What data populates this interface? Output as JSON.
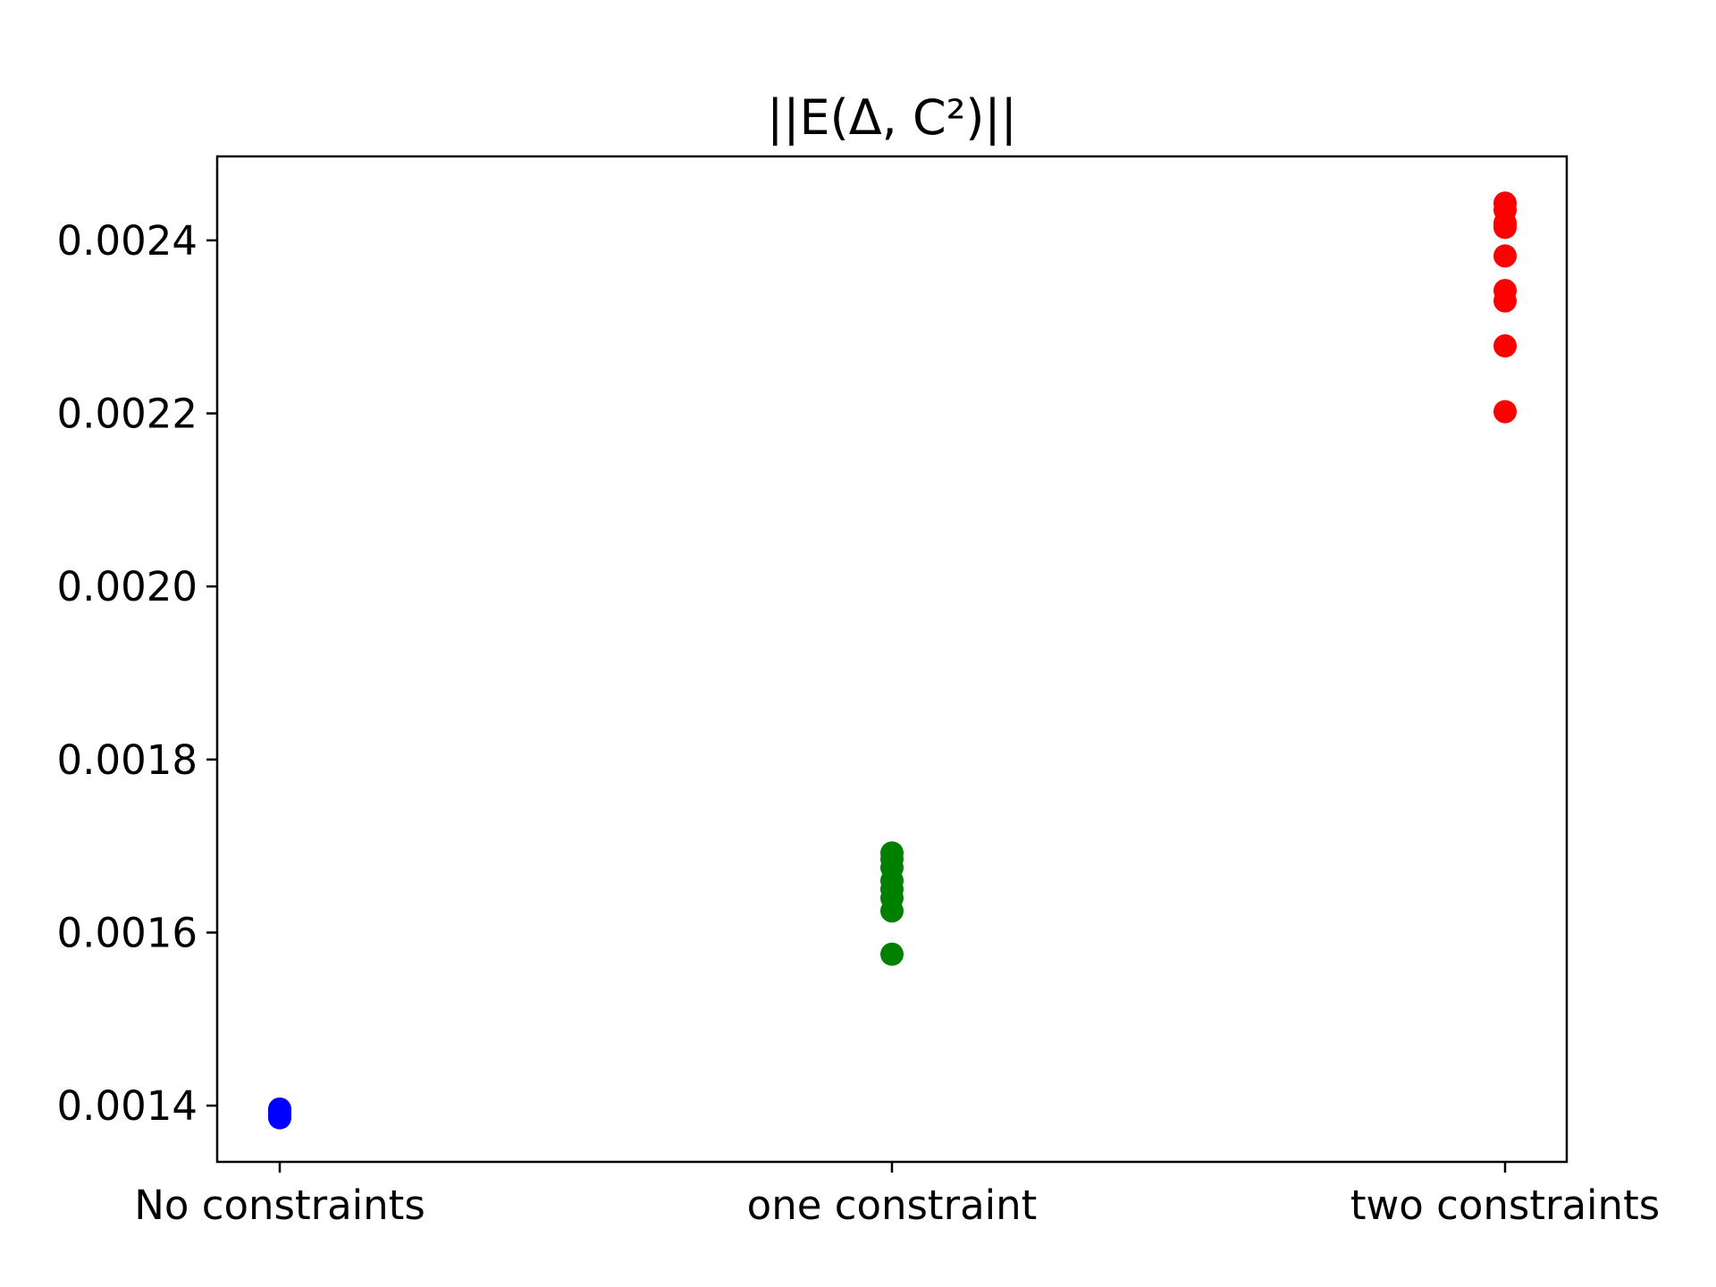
{
  "chart_data": {
    "type": "scatter",
    "title": "||E(Δ, C²)||",
    "categories": [
      "No constraints",
      "one constraint",
      "two constraints"
    ],
    "yticks": [
      "0.0014",
      "0.0016",
      "0.0018",
      "0.0020",
      "0.0022",
      "0.0024"
    ],
    "ytick_values": [
      0.0014,
      0.0016,
      0.0018,
      0.002,
      0.0022,
      0.0024
    ],
    "ylim": [
      0.001335,
      0.002497
    ],
    "grid": false,
    "series": [
      {
        "category": "No constraints",
        "color": "#0000ff",
        "values": [
          0.001386,
          0.001388,
          0.00139,
          0.001392,
          0.001394,
          0.001396
        ]
      },
      {
        "category": "one constraint",
        "color": "#008000",
        "values": [
          0.001575,
          0.001625,
          0.00164,
          0.00165,
          0.00166,
          0.001675,
          0.001685,
          0.001692
        ]
      },
      {
        "category": "two constraints",
        "color": "#ff0000",
        "values": [
          0.002202,
          0.002278,
          0.00233,
          0.002342,
          0.002382,
          0.002415,
          0.00242,
          0.002435,
          0.002443
        ]
      }
    ]
  }
}
